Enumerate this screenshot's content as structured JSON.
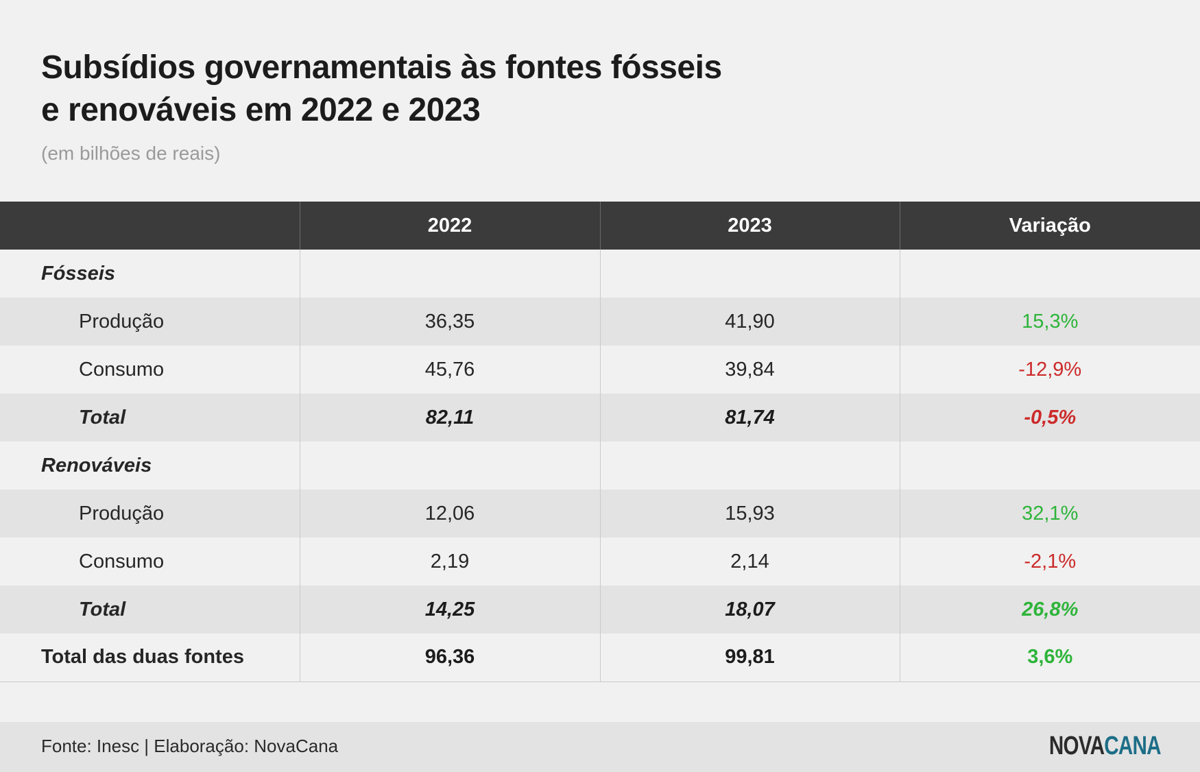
{
  "header": {
    "title_line1": "Subsídios governamentais às fontes fósseis",
    "title_line2": "e renováveis em 2022 e 2023",
    "subtitle": "(em bilhões de reais)"
  },
  "chart_data": {
    "type": "table",
    "title": "Subsídios governamentais às fontes fósseis e renováveis em 2022 e 2023",
    "subtitle": "(em bilhões de reais)",
    "columns": [
      "",
      "2022",
      "2023",
      "Variação"
    ],
    "rows": [
      {
        "kind": "section",
        "label": "Fósseis",
        "v2022": "",
        "v2023": "",
        "var": "",
        "sign": ""
      },
      {
        "kind": "sub",
        "label": "Produção",
        "v2022": "36,35",
        "v2023": "41,90",
        "var": "15,3%",
        "sign": "pos"
      },
      {
        "kind": "sub",
        "label": "Consumo",
        "v2022": "45,76",
        "v2023": "39,84",
        "var": "-12,9%",
        "sign": "neg"
      },
      {
        "kind": "total",
        "label": "Total",
        "v2022": "82,11",
        "v2023": "81,74",
        "var": "-0,5%",
        "sign": "neg"
      },
      {
        "kind": "section",
        "label": "Renováveis",
        "v2022": "",
        "v2023": "",
        "var": "",
        "sign": ""
      },
      {
        "kind": "sub",
        "label": "Produção",
        "v2022": "12,06",
        "v2023": "15,93",
        "var": "32,1%",
        "sign": "pos"
      },
      {
        "kind": "sub",
        "label": "Consumo",
        "v2022": "2,19",
        "v2023": "2,14",
        "var": "-2,1%",
        "sign": "neg"
      },
      {
        "kind": "total",
        "label": "Total",
        "v2022": "14,25",
        "v2023": "18,07",
        "var": "26,8%",
        "sign": "pos"
      },
      {
        "kind": "grand",
        "label": "Total das duas fontes",
        "v2022": "96,36",
        "v2023": "99,81",
        "var": "3,6%",
        "sign": "pos"
      }
    ],
    "colors": {
      "header_bg": "#3b3b3b",
      "positive": "#2eb43a",
      "negative": "#cc2a2a"
    }
  },
  "footer": {
    "source": "Fonte: Inesc | Elaboração: NovaCana",
    "logo_part1": "NOVA",
    "logo_part2": "CANA"
  }
}
